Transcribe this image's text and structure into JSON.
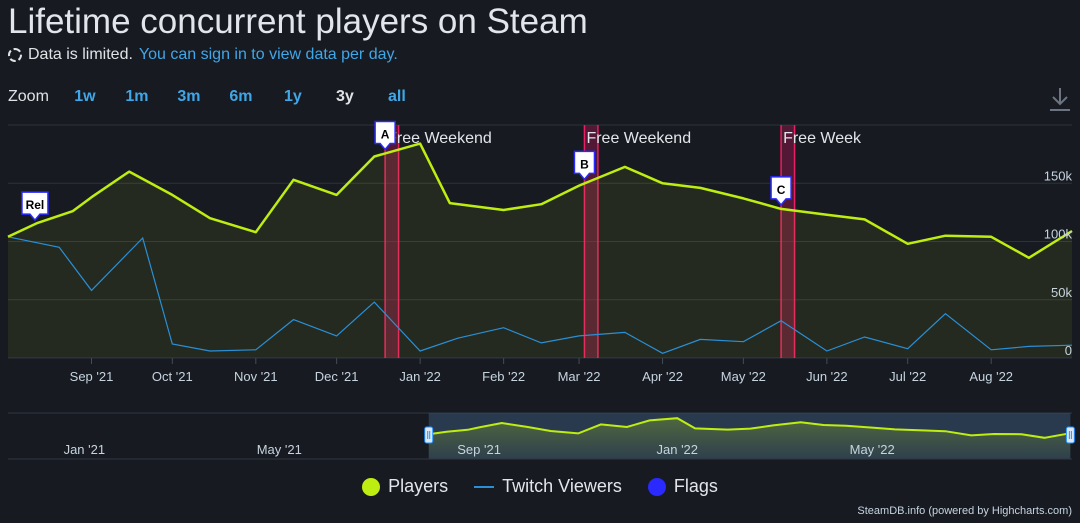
{
  "title": "Lifetime concurrent players on Steam",
  "notice": {
    "text": "Data is limited.",
    "link": "You can sign in to view data per day."
  },
  "zoom": {
    "label": "Zoom",
    "buttons": [
      "1w",
      "1m",
      "3m",
      "6m",
      "1y",
      "3y",
      "all"
    ],
    "active": "3y"
  },
  "legend": [
    {
      "name": "Players",
      "color": "#beee11"
    },
    {
      "name": "Twitch Viewers",
      "color": "#2b8fd6"
    },
    {
      "name": "Flags",
      "color": "#2a2aff"
    }
  ],
  "credit": "SteamDB.info (powered by Highcharts.com)",
  "chart_data": {
    "type": "line",
    "x_ticks": [
      "Sep '21",
      "Oct '21",
      "Nov '21",
      "Dec '21",
      "Jan '22",
      "Feb '22",
      "Mar '22",
      "Apr '22",
      "May '22",
      "Jun '22",
      "Jul '22",
      "Aug '22"
    ],
    "y_ticks": [
      "0",
      "50k",
      "100k",
      "150k"
    ],
    "ylim": [
      0,
      200000
    ],
    "grid": true,
    "legend_position": "bottom",
    "series": [
      {
        "name": "Players",
        "color": "#beee11",
        "points": [
          [
            "2021-08-01",
            104000
          ],
          [
            "2021-08-12",
            116000
          ],
          [
            "2021-08-25",
            126000
          ],
          [
            "2021-09-01",
            138000
          ],
          [
            "2021-09-15",
            160000
          ],
          [
            "2021-10-01",
            140000
          ],
          [
            "2021-10-15",
            120000
          ],
          [
            "2021-11-01",
            108000
          ],
          [
            "2021-11-15",
            153000
          ],
          [
            "2021-12-01",
            140000
          ],
          [
            "2021-12-15",
            173000
          ],
          [
            "2022-01-01",
            184000
          ],
          [
            "2022-01-12",
            133000
          ],
          [
            "2022-02-01",
            127000
          ],
          [
            "2022-02-15",
            132000
          ],
          [
            "2022-03-01",
            148000
          ],
          [
            "2022-03-18",
            164000
          ],
          [
            "2022-04-01",
            150000
          ],
          [
            "2022-04-15",
            146000
          ],
          [
            "2022-05-01",
            137000
          ],
          [
            "2022-05-15",
            128000
          ],
          [
            "2022-06-01",
            123000
          ],
          [
            "2022-06-15",
            119000
          ],
          [
            "2022-07-01",
            98000
          ],
          [
            "2022-07-15",
            105000
          ],
          [
            "2022-08-01",
            104000
          ],
          [
            "2022-08-15",
            86000
          ],
          [
            "2022-08-31",
            109000
          ]
        ]
      },
      {
        "name": "Twitch Viewers",
        "color": "#2b8fd6",
        "points": [
          [
            "2021-08-01",
            104000
          ],
          [
            "2021-08-20",
            95000
          ],
          [
            "2021-09-01",
            58000
          ],
          [
            "2021-09-20",
            103000
          ],
          [
            "2021-10-01",
            12000
          ],
          [
            "2021-10-15",
            6000
          ],
          [
            "2021-11-01",
            7000
          ],
          [
            "2021-11-15",
            33000
          ],
          [
            "2021-12-01",
            19000
          ],
          [
            "2021-12-15",
            48000
          ],
          [
            "2022-01-01",
            6000
          ],
          [
            "2022-01-15",
            17000
          ],
          [
            "2022-02-01",
            26000
          ],
          [
            "2022-02-15",
            13000
          ],
          [
            "2022-03-01",
            19000
          ],
          [
            "2022-03-18",
            22000
          ],
          [
            "2022-04-01",
            4000
          ],
          [
            "2022-04-15",
            16000
          ],
          [
            "2022-05-01",
            14000
          ],
          [
            "2022-05-15",
            32000
          ],
          [
            "2022-06-01",
            6000
          ],
          [
            "2022-06-15",
            18000
          ],
          [
            "2022-07-01",
            8000
          ],
          [
            "2022-07-15",
            38000
          ],
          [
            "2022-08-01",
            7000
          ],
          [
            "2022-08-15",
            10000
          ],
          [
            "2022-08-31",
            11000
          ]
        ]
      }
    ],
    "events": [
      {
        "label": "Free Weekend",
        "flag": "A",
        "start": "2021-12-19",
        "end": "2021-12-24"
      },
      {
        "label": "Free Weekend",
        "flag": "B",
        "start": "2022-03-03",
        "end": "2022-03-08"
      },
      {
        "label": "Free Week",
        "flag": "C",
        "start": "2022-05-15",
        "end": "2022-05-20"
      }
    ],
    "flags": [
      {
        "label": "Rel",
        "date": "2021-08-11"
      },
      {
        "label": "A",
        "date": "2021-12-19"
      },
      {
        "label": "B",
        "date": "2022-03-03"
      },
      {
        "label": "C",
        "date": "2022-05-15"
      }
    ],
    "navigator": {
      "x_ticks": [
        "Jan '21",
        "May '21",
        "Sep '21",
        "Jan '22",
        "May '22"
      ],
      "range": [
        "2021-08-01",
        "2022-08-31"
      ]
    }
  }
}
